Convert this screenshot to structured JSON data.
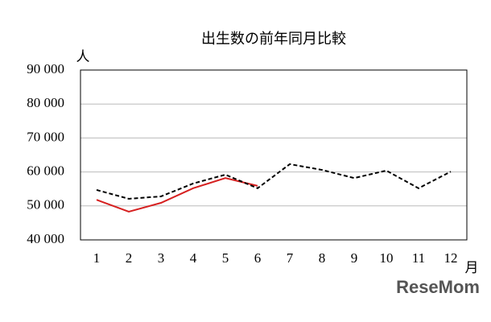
{
  "chart_data": {
    "type": "line",
    "title": "出生数の前年同月比較",
    "y_label": "人",
    "x_label": "月",
    "categories": [
      "1",
      "2",
      "3",
      "4",
      "5",
      "6",
      "7",
      "8",
      "9",
      "10",
      "11",
      "12"
    ],
    "series": [
      {
        "color": "#d62020",
        "dash": "solid",
        "values": [
          51800,
          48300,
          50900,
          55200,
          58200,
          55900,
          null,
          null,
          null,
          null,
          null,
          null
        ]
      },
      {
        "color": "#000000",
        "dash": "dashed",
        "values": [
          54700,
          52100,
          52800,
          56600,
          59200,
          55200,
          62300,
          60600,
          58200,
          60400,
          55200,
          60100
        ]
      }
    ],
    "ylim": [
      40000,
      90000
    ],
    "yticks": [
      {
        "value": 40000,
        "label": "40 000"
      },
      {
        "value": 50000,
        "label": "50 000"
      },
      {
        "value": 60000,
        "label": "60 000"
      },
      {
        "value": 70000,
        "label": "70 000"
      },
      {
        "value": 80000,
        "label": "80 000"
      },
      {
        "value": 90000,
        "label": "90 000"
      }
    ],
    "grid": true,
    "watermark": "ReseMom"
  }
}
